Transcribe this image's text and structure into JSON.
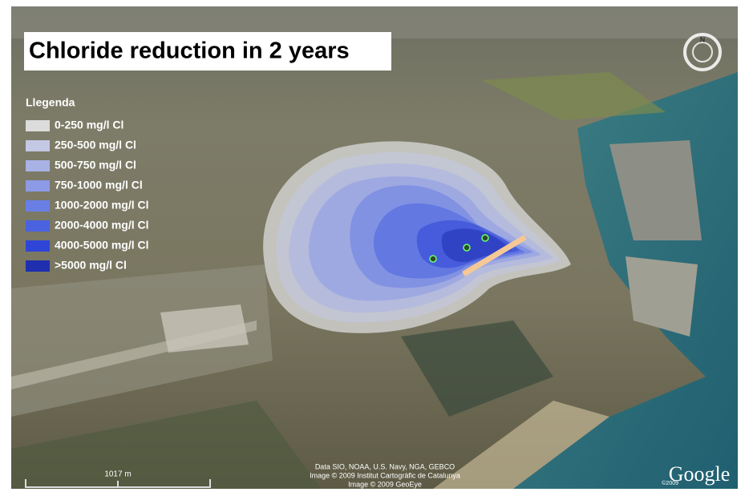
{
  "map": {
    "title": "Chloride reduction in 2 years",
    "legend": {
      "title": "Llegenda",
      "items": [
        {
          "label": "0-250 mg/l Cl",
          "color": "#dcdcdc"
        },
        {
          "label": "250-500 mg/l Cl",
          "color": "#c3c8e4"
        },
        {
          "label": "500-750 mg/l Cl",
          "color": "#a9b2e4"
        },
        {
          "label": "750-1000 mg/l Cl",
          "color": "#8d9ae6"
        },
        {
          "label": "1000-2000 mg/l Cl",
          "color": "#6a7fe6"
        },
        {
          "label": "2000-4000 mg/l Cl",
          "color": "#4a62e0"
        },
        {
          "label": "4000-5000 mg/l Cl",
          "color": "#2f45d8"
        },
        {
          "label": ">5000 mg/l Cl",
          "color": "#1f2fb0"
        }
      ]
    },
    "compass": "N",
    "scale_bar": "1017 m",
    "attribution": [
      "Data SIO, NOAA, U.S. Navy, NGA, GEBCO",
      "Image © 2009 Institut Cartogràfic de Catalunya",
      "Image © 2009 GeoEye"
    ],
    "logo_year": "©2009",
    "logo": "Google"
  }
}
